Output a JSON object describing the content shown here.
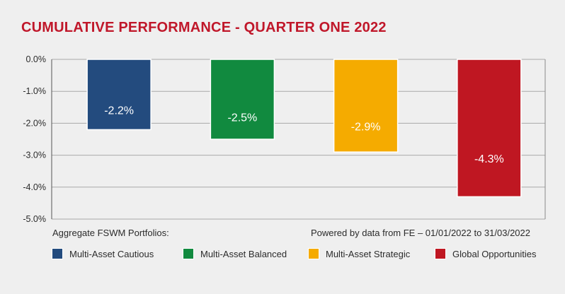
{
  "chart_data": {
    "type": "bar",
    "title": "CUMULATIVE PERFORMANCE - QUARTER ONE 2022",
    "categories": [
      "Multi-Asset Cautious",
      "Multi-Asset Balanced",
      "Multi-Asset Strategic",
      "Global Opportunities"
    ],
    "values": [
      -2.2,
      -2.5,
      -2.9,
      -4.3
    ],
    "data_labels": [
      "-2.2%",
      "-2.5%",
      "-2.9%",
      "-4.3%"
    ],
    "colors": [
      "#234b7e",
      "#118a3f",
      "#f5ab00",
      "#bf1722"
    ],
    "ylim": [
      -5.0,
      0.0
    ],
    "yticks": [
      0.0,
      -1.0,
      -2.0,
      -3.0,
      -4.0,
      -5.0
    ],
    "ytick_labels": [
      "0.0%",
      "-1.0%",
      "-2.0%",
      "-3.0%",
      "-4.0%",
      "-5.0%"
    ],
    "grid": true,
    "legend_position": "bottom",
    "legend_title": "Aggregate FSWM Portfolios:",
    "source_note": "Powered by data from FE – 01/01/2022 to 31/03/2022"
  }
}
